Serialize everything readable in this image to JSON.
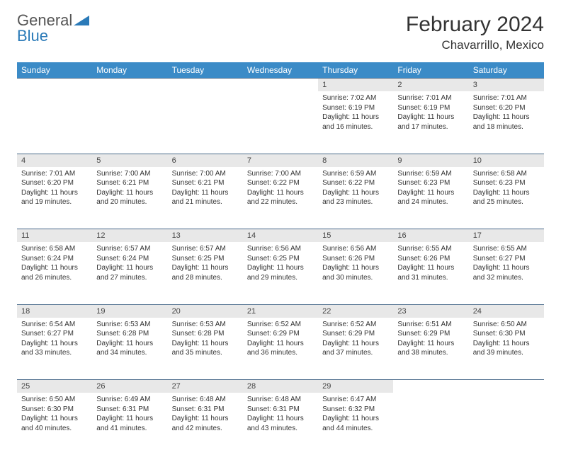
{
  "logo": {
    "text1": "General",
    "text2": "Blue"
  },
  "title": "February 2024",
  "location": "Chavarrillo, Mexico",
  "colors": {
    "header_bg": "#3b8bc7",
    "header_text": "#ffffff",
    "daynum_bg": "#e8e8e8",
    "row_border": "#4a6a8a",
    "logo_blue": "#2a7ab8"
  },
  "weekdays": [
    "Sunday",
    "Monday",
    "Tuesday",
    "Wednesday",
    "Thursday",
    "Friday",
    "Saturday"
  ],
  "weeks": [
    [
      null,
      null,
      null,
      null,
      {
        "n": "1",
        "sr": "Sunrise: 7:02 AM",
        "ss": "Sunset: 6:19 PM",
        "d1": "Daylight: 11 hours",
        "d2": "and 16 minutes."
      },
      {
        "n": "2",
        "sr": "Sunrise: 7:01 AM",
        "ss": "Sunset: 6:19 PM",
        "d1": "Daylight: 11 hours",
        "d2": "and 17 minutes."
      },
      {
        "n": "3",
        "sr": "Sunrise: 7:01 AM",
        "ss": "Sunset: 6:20 PM",
        "d1": "Daylight: 11 hours",
        "d2": "and 18 minutes."
      }
    ],
    [
      {
        "n": "4",
        "sr": "Sunrise: 7:01 AM",
        "ss": "Sunset: 6:20 PM",
        "d1": "Daylight: 11 hours",
        "d2": "and 19 minutes."
      },
      {
        "n": "5",
        "sr": "Sunrise: 7:00 AM",
        "ss": "Sunset: 6:21 PM",
        "d1": "Daylight: 11 hours",
        "d2": "and 20 minutes."
      },
      {
        "n": "6",
        "sr": "Sunrise: 7:00 AM",
        "ss": "Sunset: 6:21 PM",
        "d1": "Daylight: 11 hours",
        "d2": "and 21 minutes."
      },
      {
        "n": "7",
        "sr": "Sunrise: 7:00 AM",
        "ss": "Sunset: 6:22 PM",
        "d1": "Daylight: 11 hours",
        "d2": "and 22 minutes."
      },
      {
        "n": "8",
        "sr": "Sunrise: 6:59 AM",
        "ss": "Sunset: 6:22 PM",
        "d1": "Daylight: 11 hours",
        "d2": "and 23 minutes."
      },
      {
        "n": "9",
        "sr": "Sunrise: 6:59 AM",
        "ss": "Sunset: 6:23 PM",
        "d1": "Daylight: 11 hours",
        "d2": "and 24 minutes."
      },
      {
        "n": "10",
        "sr": "Sunrise: 6:58 AM",
        "ss": "Sunset: 6:23 PM",
        "d1": "Daylight: 11 hours",
        "d2": "and 25 minutes."
      }
    ],
    [
      {
        "n": "11",
        "sr": "Sunrise: 6:58 AM",
        "ss": "Sunset: 6:24 PM",
        "d1": "Daylight: 11 hours",
        "d2": "and 26 minutes."
      },
      {
        "n": "12",
        "sr": "Sunrise: 6:57 AM",
        "ss": "Sunset: 6:24 PM",
        "d1": "Daylight: 11 hours",
        "d2": "and 27 minutes."
      },
      {
        "n": "13",
        "sr": "Sunrise: 6:57 AM",
        "ss": "Sunset: 6:25 PM",
        "d1": "Daylight: 11 hours",
        "d2": "and 28 minutes."
      },
      {
        "n": "14",
        "sr": "Sunrise: 6:56 AM",
        "ss": "Sunset: 6:25 PM",
        "d1": "Daylight: 11 hours",
        "d2": "and 29 minutes."
      },
      {
        "n": "15",
        "sr": "Sunrise: 6:56 AM",
        "ss": "Sunset: 6:26 PM",
        "d1": "Daylight: 11 hours",
        "d2": "and 30 minutes."
      },
      {
        "n": "16",
        "sr": "Sunrise: 6:55 AM",
        "ss": "Sunset: 6:26 PM",
        "d1": "Daylight: 11 hours",
        "d2": "and 31 minutes."
      },
      {
        "n": "17",
        "sr": "Sunrise: 6:55 AM",
        "ss": "Sunset: 6:27 PM",
        "d1": "Daylight: 11 hours",
        "d2": "and 32 minutes."
      }
    ],
    [
      {
        "n": "18",
        "sr": "Sunrise: 6:54 AM",
        "ss": "Sunset: 6:27 PM",
        "d1": "Daylight: 11 hours",
        "d2": "and 33 minutes."
      },
      {
        "n": "19",
        "sr": "Sunrise: 6:53 AM",
        "ss": "Sunset: 6:28 PM",
        "d1": "Daylight: 11 hours",
        "d2": "and 34 minutes."
      },
      {
        "n": "20",
        "sr": "Sunrise: 6:53 AM",
        "ss": "Sunset: 6:28 PM",
        "d1": "Daylight: 11 hours",
        "d2": "and 35 minutes."
      },
      {
        "n": "21",
        "sr": "Sunrise: 6:52 AM",
        "ss": "Sunset: 6:29 PM",
        "d1": "Daylight: 11 hours",
        "d2": "and 36 minutes."
      },
      {
        "n": "22",
        "sr": "Sunrise: 6:52 AM",
        "ss": "Sunset: 6:29 PM",
        "d1": "Daylight: 11 hours",
        "d2": "and 37 minutes."
      },
      {
        "n": "23",
        "sr": "Sunrise: 6:51 AM",
        "ss": "Sunset: 6:29 PM",
        "d1": "Daylight: 11 hours",
        "d2": "and 38 minutes."
      },
      {
        "n": "24",
        "sr": "Sunrise: 6:50 AM",
        "ss": "Sunset: 6:30 PM",
        "d1": "Daylight: 11 hours",
        "d2": "and 39 minutes."
      }
    ],
    [
      {
        "n": "25",
        "sr": "Sunrise: 6:50 AM",
        "ss": "Sunset: 6:30 PM",
        "d1": "Daylight: 11 hours",
        "d2": "and 40 minutes."
      },
      {
        "n": "26",
        "sr": "Sunrise: 6:49 AM",
        "ss": "Sunset: 6:31 PM",
        "d1": "Daylight: 11 hours",
        "d2": "and 41 minutes."
      },
      {
        "n": "27",
        "sr": "Sunrise: 6:48 AM",
        "ss": "Sunset: 6:31 PM",
        "d1": "Daylight: 11 hours",
        "d2": "and 42 minutes."
      },
      {
        "n": "28",
        "sr": "Sunrise: 6:48 AM",
        "ss": "Sunset: 6:31 PM",
        "d1": "Daylight: 11 hours",
        "d2": "and 43 minutes."
      },
      {
        "n": "29",
        "sr": "Sunrise: 6:47 AM",
        "ss": "Sunset: 6:32 PM",
        "d1": "Daylight: 11 hours",
        "d2": "and 44 minutes."
      },
      null,
      null
    ]
  ]
}
